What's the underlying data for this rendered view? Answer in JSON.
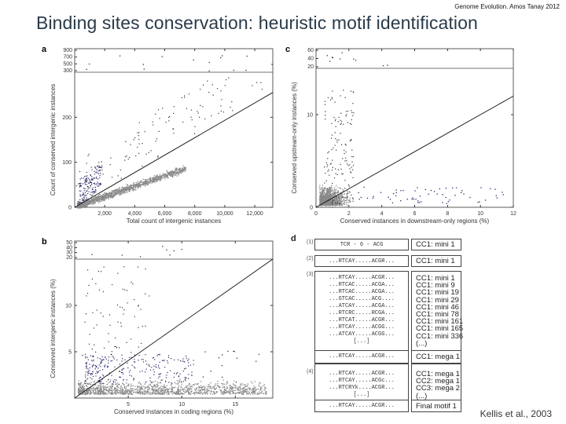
{
  "header": {
    "credit": "Genome Evolution. Amos Tanay 2012",
    "title": "Binding sites conservation: heuristic motif identification"
  },
  "footer": {
    "citation": "Kellis et al., 2003"
  },
  "colors": {
    "title": "#2a3a4a",
    "points_gray": "#8a8a8a",
    "points_blue": "#2a2a6a",
    "line": "#111111"
  },
  "chart_data": [
    {
      "panel": "a",
      "type": "scatter",
      "xlabel": "Total count of intergenic instances",
      "ylabel": "Count of conserved intergenic instances",
      "xticks": [
        "2,000",
        "4,000",
        "6,000",
        "8,000",
        "10,000",
        "12,000"
      ],
      "yticks": [
        "0",
        "100",
        "200"
      ],
      "yticks_top": [
        "300",
        "500",
        "700",
        "900"
      ],
      "xlim": [
        0,
        13200
      ],
      "ylim": [
        0,
        300
      ],
      "regression_line": {
        "x": [
          0,
          13200
        ],
        "y": [
          0,
          255
        ]
      }
    },
    {
      "panel": "c",
      "type": "scatter",
      "xlabel": "Conserved instances in downstream-only regions (%)",
      "ylabel": "Conserved upstream-only instances (%)",
      "xticks": [
        "0",
        "2",
        "4",
        "6",
        "8",
        "10",
        "12"
      ],
      "yticks": [
        "0",
        "10"
      ],
      "yticks_top": [
        "20",
        "40",
        "60"
      ],
      "xlim": [
        0,
        12
      ],
      "ylim": [
        0,
        15
      ],
      "regression_line": {
        "x": [
          0,
          12
        ],
        "y": [
          0,
          12
        ]
      }
    },
    {
      "panel": "b",
      "type": "scatter",
      "xlabel": "Conserved instances in coding regions (%)",
      "ylabel": "Conserved intergenic instances (%)",
      "xticks": [
        "5",
        "10",
        "15"
      ],
      "yticks": [
        "5",
        "10"
      ],
      "yticks_top": [
        "20",
        "30",
        "40",
        "50"
      ],
      "xlim": [
        0,
        18.5
      ],
      "ylim": [
        0,
        15
      ],
      "regression_line": {
        "x": [
          0,
          18.5
        ],
        "y": [
          0,
          15
        ]
      }
    }
  ],
  "panel_d": {
    "label": "d",
    "steps": [
      {
        "num": "(1)",
        "motifs": [
          "TCR - 6 - ACG"
        ],
        "ccs": [
          "CC1: mini 1"
        ]
      },
      {
        "num": "(2)",
        "motifs": [
          "...RTCAY.....ACGR..."
        ],
        "ccs": [
          "CC1: mini 1"
        ]
      },
      {
        "num": "(3)",
        "motifs": [
          "...RTCAY.....ACGR...",
          "...RTCAC.....ACGA...",
          "...RTCAC.....ACGA...",
          "...GTCAC.....ACG....",
          "...ATCAY.....ACGA...",
          "...RTCRC.....RCGA...",
          "...RTCAT.....ACGR...",
          "...RTCAY.....ACGG...",
          "...ATCAY.....ACGG...",
          "[...]"
        ],
        "ccs": [
          "CC1: mini 1",
          "CC1: mini 9",
          "CC1: mini 19",
          "CC1: mini 29",
          "CC1: mini 46",
          "CC1: mini 78",
          "CC1: mini 161",
          "CC1: mini 165",
          "CC1: mini 336",
          "(...)"
        ],
        "result_motif": "...RTCAY.....ACGR...",
        "result_cc": "CC1: mega 1"
      },
      {
        "num": "(4)",
        "motifs": [
          "...RTCAY.....ACGR...",
          "...RTCAY.....ACGc...",
          "...RTCRYk....ACGR...",
          "[...]"
        ],
        "ccs": [
          "CC1: mega 1",
          "CC2: mega 1",
          "CC3: mega 2",
          "(...)"
        ],
        "result_motif": "...RTCAY.....ACGR...",
        "result_cc": "Final motif 1"
      }
    ]
  },
  "panel_labels": {
    "a": "a",
    "b": "b",
    "c": "c"
  }
}
